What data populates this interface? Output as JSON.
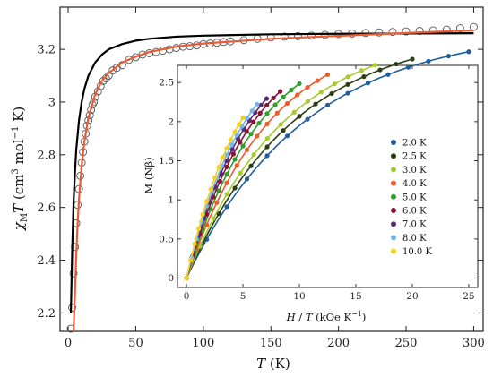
{
  "chart_data": [
    {
      "type": "scatter",
      "xlabel": "T (K)",
      "ylabel": "χMT (cm3 mol−1 K)",
      "xlim": [
        -6,
        307
      ],
      "ylim": [
        2.13,
        3.36
      ],
      "x_ticks": [
        "0",
        "50",
        "100",
        "150",
        "200",
        "250",
        "300"
      ],
      "y_ticks": [
        "2.2",
        "2.4",
        "2.6",
        "2.8",
        "3",
        "3.2"
      ],
      "x_tick_values": [
        0,
        50,
        100,
        150,
        200,
        250,
        300
      ],
      "y_tick_values": [
        2.2,
        2.4,
        2.6,
        2.8,
        3.0,
        3.2
      ],
      "xlabel_parts": {
        "var": "T",
        "unit": " (K)"
      },
      "ylabel_parts": {
        "chi": "χ",
        "sub": "M",
        "T": "T",
        "open": " (cm",
        "sup3": "3",
        "mid": " mol",
        "supm1": "−1",
        "close": " K)"
      },
      "series": [
        {
          "style": "open-circle",
          "values": [
            [
              2,
              2.14
            ],
            [
              3,
              2.22
            ],
            [
              4,
              2.35
            ],
            [
              5,
              2.45
            ],
            [
              6,
              2.54
            ],
            [
              7,
              2.61
            ],
            [
              8,
              2.67
            ],
            [
              9,
              2.72
            ],
            [
              10,
              2.77
            ],
            [
              11,
              2.81
            ],
            [
              12,
              2.85
            ],
            [
              13,
              2.88
            ],
            [
              14,
              2.91
            ],
            [
              15,
              2.93
            ],
            [
              16,
              2.95
            ],
            [
              17,
              2.97
            ],
            [
              18,
              2.99
            ],
            [
              19,
              3.0
            ],
            [
              20,
              3.02
            ],
            [
              22,
              3.04
            ],
            [
              24,
              3.06
            ],
            [
              26,
              3.08
            ],
            [
              28,
              3.09
            ],
            [
              30,
              3.1
            ],
            [
              33,
              3.12
            ],
            [
              36,
              3.13
            ],
            [
              40,
              3.14
            ],
            [
              45,
              3.16
            ],
            [
              50,
              3.17
            ],
            [
              55,
              3.18
            ],
            [
              60,
              3.185
            ],
            [
              65,
              3.19
            ],
            [
              70,
              3.195
            ],
            [
              75,
              3.2
            ],
            [
              80,
              3.205
            ],
            [
              85,
              3.21
            ],
            [
              90,
              3.212
            ],
            [
              95,
              3.215
            ],
            [
              100,
              3.22
            ],
            [
              105,
              3.222
            ],
            [
              110,
              3.225
            ],
            [
              115,
              3.228
            ],
            [
              120,
              3.23
            ],
            [
              130,
              3.235
            ],
            [
              140,
              3.24
            ],
            [
              150,
              3.245
            ],
            [
              160,
              3.248
            ],
            [
              170,
              3.25
            ],
            [
              180,
              3.252
            ],
            [
              190,
              3.255
            ],
            [
              200,
              3.258
            ],
            [
              210,
              3.26
            ],
            [
              220,
              3.262
            ],
            [
              230,
              3.264
            ],
            [
              240,
              3.266
            ],
            [
              250,
              3.268
            ],
            [
              260,
              3.27
            ],
            [
              270,
              3.272
            ],
            [
              280,
              3.275
            ],
            [
              290,
              3.28
            ],
            [
              300,
              3.285
            ]
          ]
        },
        {
          "style": "line",
          "color": "#000000",
          "values": [
            [
              2,
              2.2
            ],
            [
              3,
              2.44
            ],
            [
              4,
              2.62
            ],
            [
              5,
              2.73
            ],
            [
              6,
              2.82
            ],
            [
              8,
              2.93
            ],
            [
              10,
              3.0
            ],
            [
              12,
              3.05
            ],
            [
              15,
              3.1
            ],
            [
              20,
              3.15
            ],
            [
              25,
              3.18
            ],
            [
              30,
              3.2
            ],
            [
              40,
              3.22
            ],
            [
              50,
              3.233
            ],
            [
              60,
              3.24
            ],
            [
              80,
              3.248
            ],
            [
              100,
              3.252
            ],
            [
              150,
              3.257
            ],
            [
              200,
              3.259
            ],
            [
              250,
              3.26
            ],
            [
              300,
              3.261
            ]
          ]
        },
        {
          "style": "line",
          "color": "#ec5b34",
          "values": [
            [
              4,
              2.13
            ],
            [
              5,
              2.27
            ],
            [
              6,
              2.42
            ],
            [
              7,
              2.54
            ],
            [
              8,
              2.63
            ],
            [
              10,
              2.76
            ],
            [
              12,
              2.85
            ],
            [
              15,
              2.94
            ],
            [
              20,
              3.03
            ],
            [
              25,
              3.08
            ],
            [
              30,
              3.11
            ],
            [
              40,
              3.15
            ],
            [
              50,
              3.172
            ],
            [
              60,
              3.19
            ],
            [
              80,
              3.21
            ],
            [
              100,
              3.222
            ],
            [
              150,
              3.24
            ],
            [
              200,
              3.251
            ],
            [
              250,
              3.262
            ],
            [
              300,
              3.272
            ]
          ]
        }
      ]
    },
    {
      "type": "scatter",
      "xlabel": "H / T (kOe K−1)",
      "ylabel": "M (Nβ)",
      "xlim": [
        -0.8,
        25.8
      ],
      "ylim": [
        -0.12,
        2.72
      ],
      "x_ticks": [
        "0",
        "5",
        "10",
        "15",
        "20",
        "25"
      ],
      "y_ticks": [
        "0",
        "0.5",
        "1",
        "1.5",
        "2",
        "2.5"
      ],
      "x_tick_values": [
        0,
        5,
        10,
        15,
        20,
        25
      ],
      "y_tick_values": [
        0,
        0.5,
        1,
        1.5,
        2,
        2.5
      ],
      "xlabel_parts": {
        "H": "H",
        "slash": " / ",
        "T": "T",
        "open": " (kOe K",
        "supm1": "−1",
        "close": ")"
      },
      "legend_position": "inside-right",
      "series": [
        {
          "name": "2.0 K",
          "color": "#1f5e9c",
          "x_max": 25.0,
          "m_sat": 3.2,
          "k": 0.094
        },
        {
          "name": "2.5 K",
          "color": "#2b3d12",
          "x_max": 20.0,
          "m_sat": 3.2,
          "k": 0.104
        },
        {
          "name": "3.0 K",
          "color": "#a6cc2a",
          "x_max": 16.7,
          "m_sat": 3.2,
          "k": 0.114
        },
        {
          "name": "4.0 K",
          "color": "#ef5a28",
          "x_max": 12.5,
          "m_sat": 3.2,
          "k": 0.134
        },
        {
          "name": "5.0 K",
          "color": "#2f9e2c",
          "x_max": 10.0,
          "m_sat": 3.2,
          "k": 0.15
        },
        {
          "name": "6.0 K",
          "color": "#8b1230",
          "x_max": 8.3,
          "m_sat": 3.2,
          "k": 0.165
        },
        {
          "name": "7.0 K",
          "color": "#5a2a72",
          "x_max": 7.1,
          "m_sat": 3.2,
          "k": 0.178
        },
        {
          "name": "8.0 K",
          "color": "#74b6e9",
          "x_max": 6.25,
          "m_sat": 3.2,
          "k": 0.19
        },
        {
          "name": "10.0 K",
          "color": "#f5d11f",
          "x_max": 5.0,
          "m_sat": 3.2,
          "k": 0.205
        }
      ]
    }
  ]
}
